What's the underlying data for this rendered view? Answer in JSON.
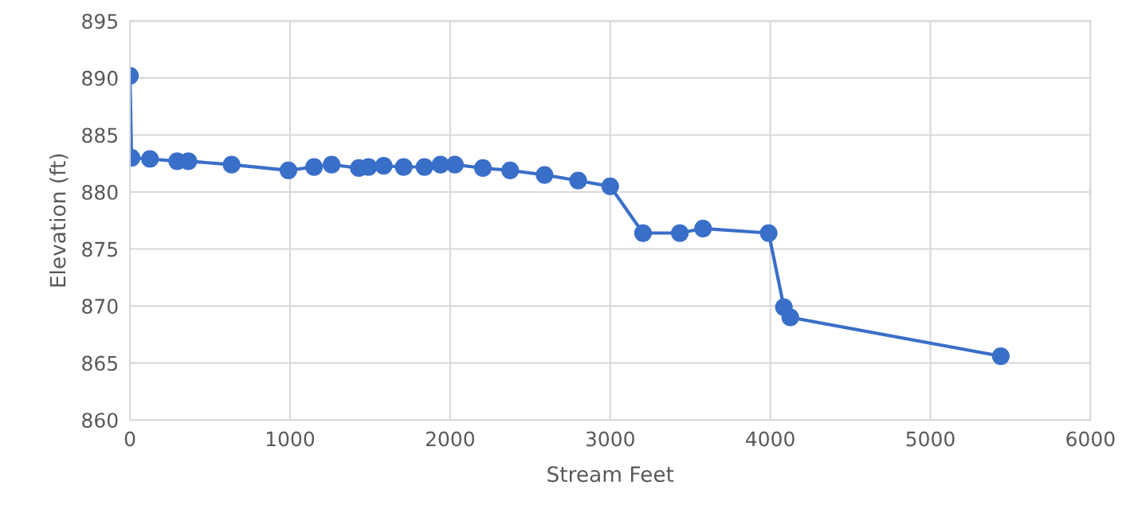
{
  "chart_data": {
    "type": "line",
    "xlabel": "Stream Feet",
    "ylabel": "Elevation (ft)",
    "x": [
      0,
      10,
      125,
      295,
      365,
      635,
      990,
      1150,
      1260,
      1430,
      1490,
      1585,
      1710,
      1840,
      1940,
      2030,
      2205,
      2375,
      2590,
      2800,
      3000,
      3205,
      3435,
      3580,
      3990,
      4085,
      4125,
      5440
    ],
    "series": [
      {
        "color": "#3a6fc9",
        "values": [
          890.2,
          883.0,
          882.9,
          882.7,
          882.7,
          882.4,
          881.9,
          882.2,
          882.4,
          882.1,
          882.2,
          882.3,
          882.2,
          882.2,
          882.4,
          882.4,
          882.1,
          881.9,
          881.5,
          881.0,
          880.5,
          876.4,
          876.4,
          876.8,
          876.4,
          869.9,
          869.0,
          865.6
        ]
      }
    ],
    "xlim": [
      0,
      6000
    ],
    "xticks": [
      0,
      1000,
      2000,
      3000,
      4000,
      5000,
      6000
    ],
    "ylim": [
      860,
      895
    ],
    "yticks": [
      860,
      865,
      870,
      875,
      880,
      885,
      890,
      895
    ],
    "grid": true,
    "marker": "circle",
    "line_style": "solid"
  }
}
